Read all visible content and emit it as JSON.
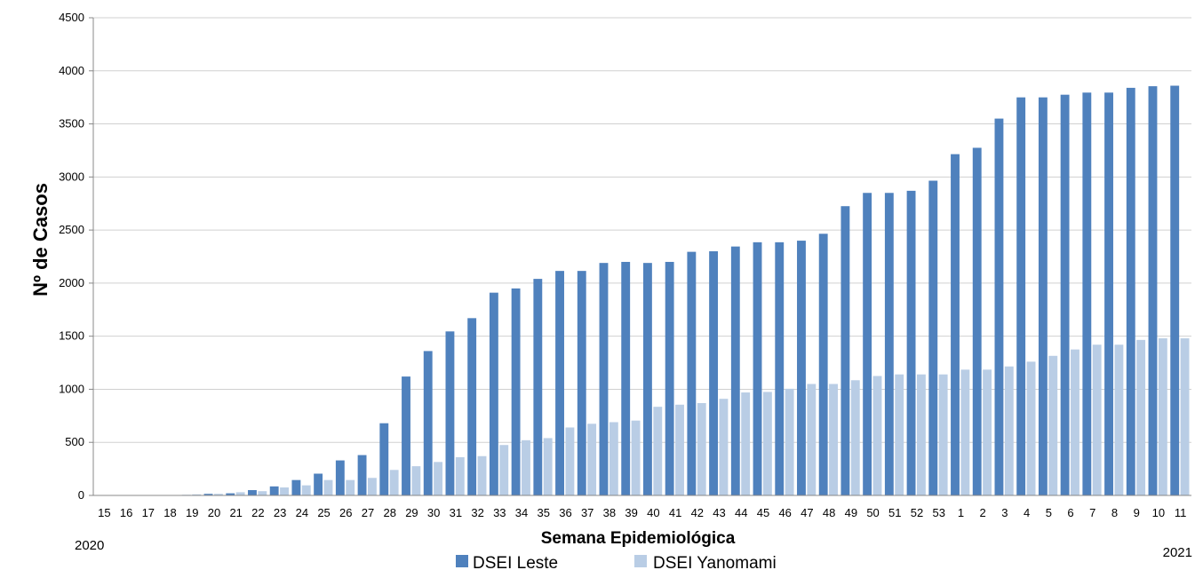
{
  "chart_data": {
    "type": "bar",
    "xlabel": "Semana Epidemiológica",
    "ylabel": "Nº de Casos",
    "ylim": [
      0,
      4500
    ],
    "yticks": [
      0,
      500,
      1000,
      1500,
      2000,
      2500,
      3000,
      3500,
      4000,
      4500
    ],
    "grid": true,
    "legend_position": "bottom",
    "year_labels": {
      "start": "2020",
      "end": "2021"
    },
    "categories": [
      "15",
      "16",
      "17",
      "18",
      "19",
      "20",
      "21",
      "22",
      "23",
      "24",
      "25",
      "26",
      "27",
      "28",
      "29",
      "30",
      "31",
      "32",
      "33",
      "34",
      "35",
      "36",
      "37",
      "38",
      "39",
      "40",
      "41",
      "42",
      "43",
      "44",
      "45",
      "46",
      "47",
      "48",
      "49",
      "50",
      "51",
      "52",
      "53",
      "1",
      "2",
      "3",
      "4",
      "5",
      "6",
      "7",
      "8",
      "9",
      "10",
      "11"
    ],
    "series": [
      {
        "name": "DSEI Leste",
        "color": "#4f81bd",
        "values": [
          0,
          0,
          0,
          0,
          5,
          15,
          20,
          50,
          85,
          145,
          205,
          330,
          380,
          680,
          1120,
          1360,
          1545,
          1670,
          1910,
          1950,
          2040,
          2115,
          2115,
          2190,
          2200,
          2190,
          2200,
          2295,
          2300,
          2345,
          2385,
          2385,
          2400,
          2465,
          2725,
          2850,
          2850,
          2870,
          2965,
          3215,
          3275,
          3550,
          3750,
          3750,
          3775,
          3795,
          3795,
          3840,
          3855,
          3860
        ]
      },
      {
        "name": "DSEI Yanomami",
        "color": "#b9cde5",
        "values": [
          0,
          0,
          0,
          0,
          10,
          15,
          30,
          40,
          75,
          95,
          145,
          145,
          165,
          240,
          275,
          315,
          360,
          370,
          475,
          520,
          540,
          640,
          675,
          690,
          705,
          835,
          855,
          870,
          910,
          970,
          975,
          1005,
          1050,
          1050,
          1085,
          1125,
          1140,
          1140,
          1140,
          1185,
          1185,
          1215,
          1260,
          1315,
          1375,
          1420,
          1420,
          1465,
          1480,
          1480
        ]
      }
    ]
  }
}
